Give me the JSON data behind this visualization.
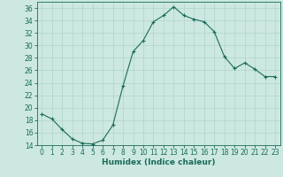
{
  "x": [
    0,
    1,
    2,
    3,
    4,
    5,
    6,
    7,
    8,
    9,
    10,
    11,
    12,
    13,
    14,
    15,
    16,
    17,
    18,
    19,
    20,
    21,
    22,
    23
  ],
  "y": [
    19.0,
    18.2,
    16.5,
    15.0,
    14.3,
    14.2,
    14.8,
    17.2,
    23.5,
    29.0,
    30.8,
    33.8,
    34.8,
    36.2,
    34.8,
    34.2,
    33.8,
    32.2,
    28.2,
    26.3,
    27.2,
    26.2,
    25.0,
    25.0
  ],
  "line_color": "#1a6b5a",
  "marker": "+",
  "marker_size": 3,
  "bg_color": "#cce8e0",
  "grid_color": "#b0d4cc",
  "xlabel": "Humidex (Indice chaleur)",
  "ylim": [
    14,
    37
  ],
  "xlim": [
    -0.5,
    23.5
  ],
  "yticks": [
    14,
    16,
    18,
    20,
    22,
    24,
    26,
    28,
    30,
    32,
    34,
    36
  ],
  "xticks": [
    0,
    1,
    2,
    3,
    4,
    5,
    6,
    7,
    8,
    9,
    10,
    11,
    12,
    13,
    14,
    15,
    16,
    17,
    18,
    19,
    20,
    21,
    22,
    23
  ],
  "tick_fontsize": 5.5,
  "xlabel_fontsize": 6.5
}
